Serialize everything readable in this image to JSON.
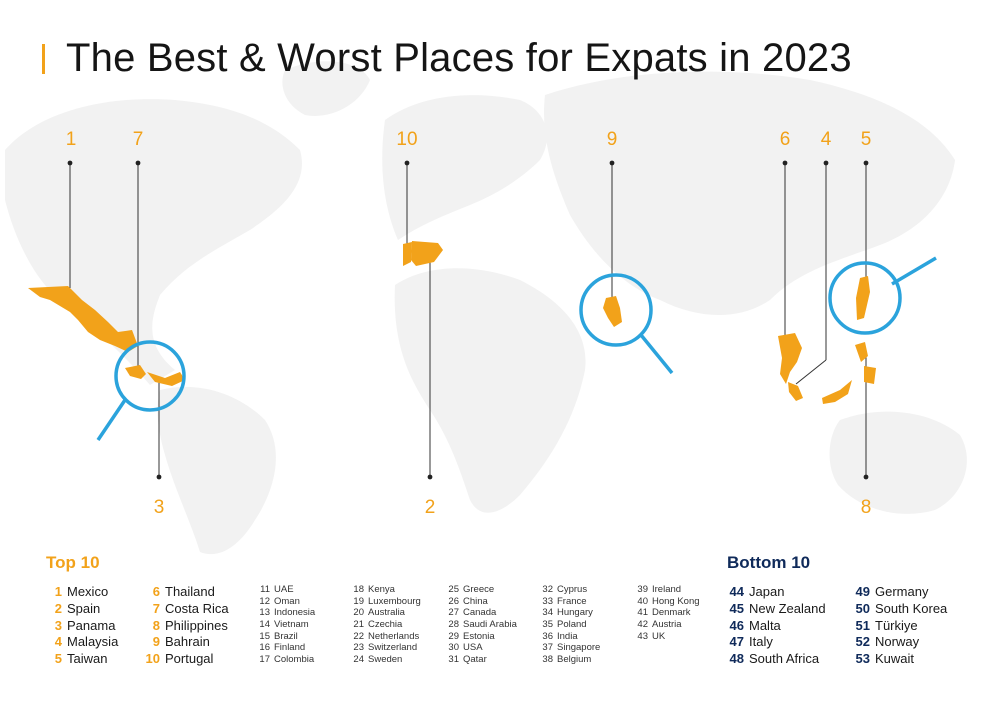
{
  "title": "The Best & Worst Places for Expats in 2023",
  "map_labels": [
    "1",
    "7",
    "3",
    "10",
    "2",
    "9",
    "6",
    "4",
    "5",
    "8"
  ],
  "top10": {
    "heading": "Top 10",
    "col1": [
      {
        "rank": "1",
        "country": "Mexico"
      },
      {
        "rank": "2",
        "country": "Spain"
      },
      {
        "rank": "3",
        "country": "Panama"
      },
      {
        "rank": "4",
        "country": "Malaysia"
      },
      {
        "rank": "5",
        "country": "Taiwan"
      }
    ],
    "col2": [
      {
        "rank": "6",
        "country": "Thailand"
      },
      {
        "rank": "7",
        "country": "Costa Rica"
      },
      {
        "rank": "8",
        "country": "Philippines"
      },
      {
        "rank": "9",
        "country": "Bahrain"
      },
      {
        "rank": "10",
        "country": "Portugal"
      }
    ]
  },
  "middle": {
    "col1": [
      {
        "rank": "11",
        "country": "UAE"
      },
      {
        "rank": "12",
        "country": "Oman"
      },
      {
        "rank": "13",
        "country": "Indonesia"
      },
      {
        "rank": "14",
        "country": "Vietnam"
      },
      {
        "rank": "15",
        "country": "Brazil"
      },
      {
        "rank": "16",
        "country": "Finland"
      },
      {
        "rank": "17",
        "country": "Colombia"
      }
    ],
    "col2": [
      {
        "rank": "18",
        "country": "Kenya"
      },
      {
        "rank": "19",
        "country": "Luxembourg"
      },
      {
        "rank": "20",
        "country": "Australia"
      },
      {
        "rank": "21",
        "country": "Czechia"
      },
      {
        "rank": "22",
        "country": "Netherlands"
      },
      {
        "rank": "23",
        "country": "Switzerland"
      },
      {
        "rank": "24",
        "country": "Sweden"
      }
    ],
    "col3": [
      {
        "rank": "25",
        "country": "Greece"
      },
      {
        "rank": "26",
        "country": "China"
      },
      {
        "rank": "27",
        "country": "Canada"
      },
      {
        "rank": "28",
        "country": "Saudi Arabia"
      },
      {
        "rank": "29",
        "country": "Estonia"
      },
      {
        "rank": "30",
        "country": "USA"
      },
      {
        "rank": "31",
        "country": "Qatar"
      }
    ],
    "col4": [
      {
        "rank": "32",
        "country": "Cyprus"
      },
      {
        "rank": "33",
        "country": "France"
      },
      {
        "rank": "34",
        "country": "Hungary"
      },
      {
        "rank": "35",
        "country": "Poland"
      },
      {
        "rank": "36",
        "country": "India"
      },
      {
        "rank": "37",
        "country": "Singapore"
      },
      {
        "rank": "38",
        "country": "Belgium"
      }
    ],
    "col5": [
      {
        "rank": "39",
        "country": "Ireland"
      },
      {
        "rank": "40",
        "country": "Hong Kong"
      },
      {
        "rank": "41",
        "country": "Denmark"
      },
      {
        "rank": "42",
        "country": "Austria"
      },
      {
        "rank": "43",
        "country": "UK"
      }
    ]
  },
  "bottom10": {
    "heading": "Bottom 10",
    "col1": [
      {
        "rank": "44",
        "country": "Japan"
      },
      {
        "rank": "45",
        "country": "New Zealand"
      },
      {
        "rank": "46",
        "country": "Malta"
      },
      {
        "rank": "47",
        "country": "Italy"
      },
      {
        "rank": "48",
        "country": "South Africa"
      }
    ],
    "col2": [
      {
        "rank": "49",
        "country": "Germany"
      },
      {
        "rank": "50",
        "country": "South Korea"
      },
      {
        "rank": "51",
        "country": "Türkiye"
      },
      {
        "rank": "52",
        "country": "Norway"
      },
      {
        "rank": "53",
        "country": "Kuwait"
      }
    ]
  },
  "colors": {
    "accent": "#f2a21a",
    "magnifier": "#2ba3dc",
    "navy": "#0f2a5a",
    "map_bg": "#f3f3f3"
  }
}
